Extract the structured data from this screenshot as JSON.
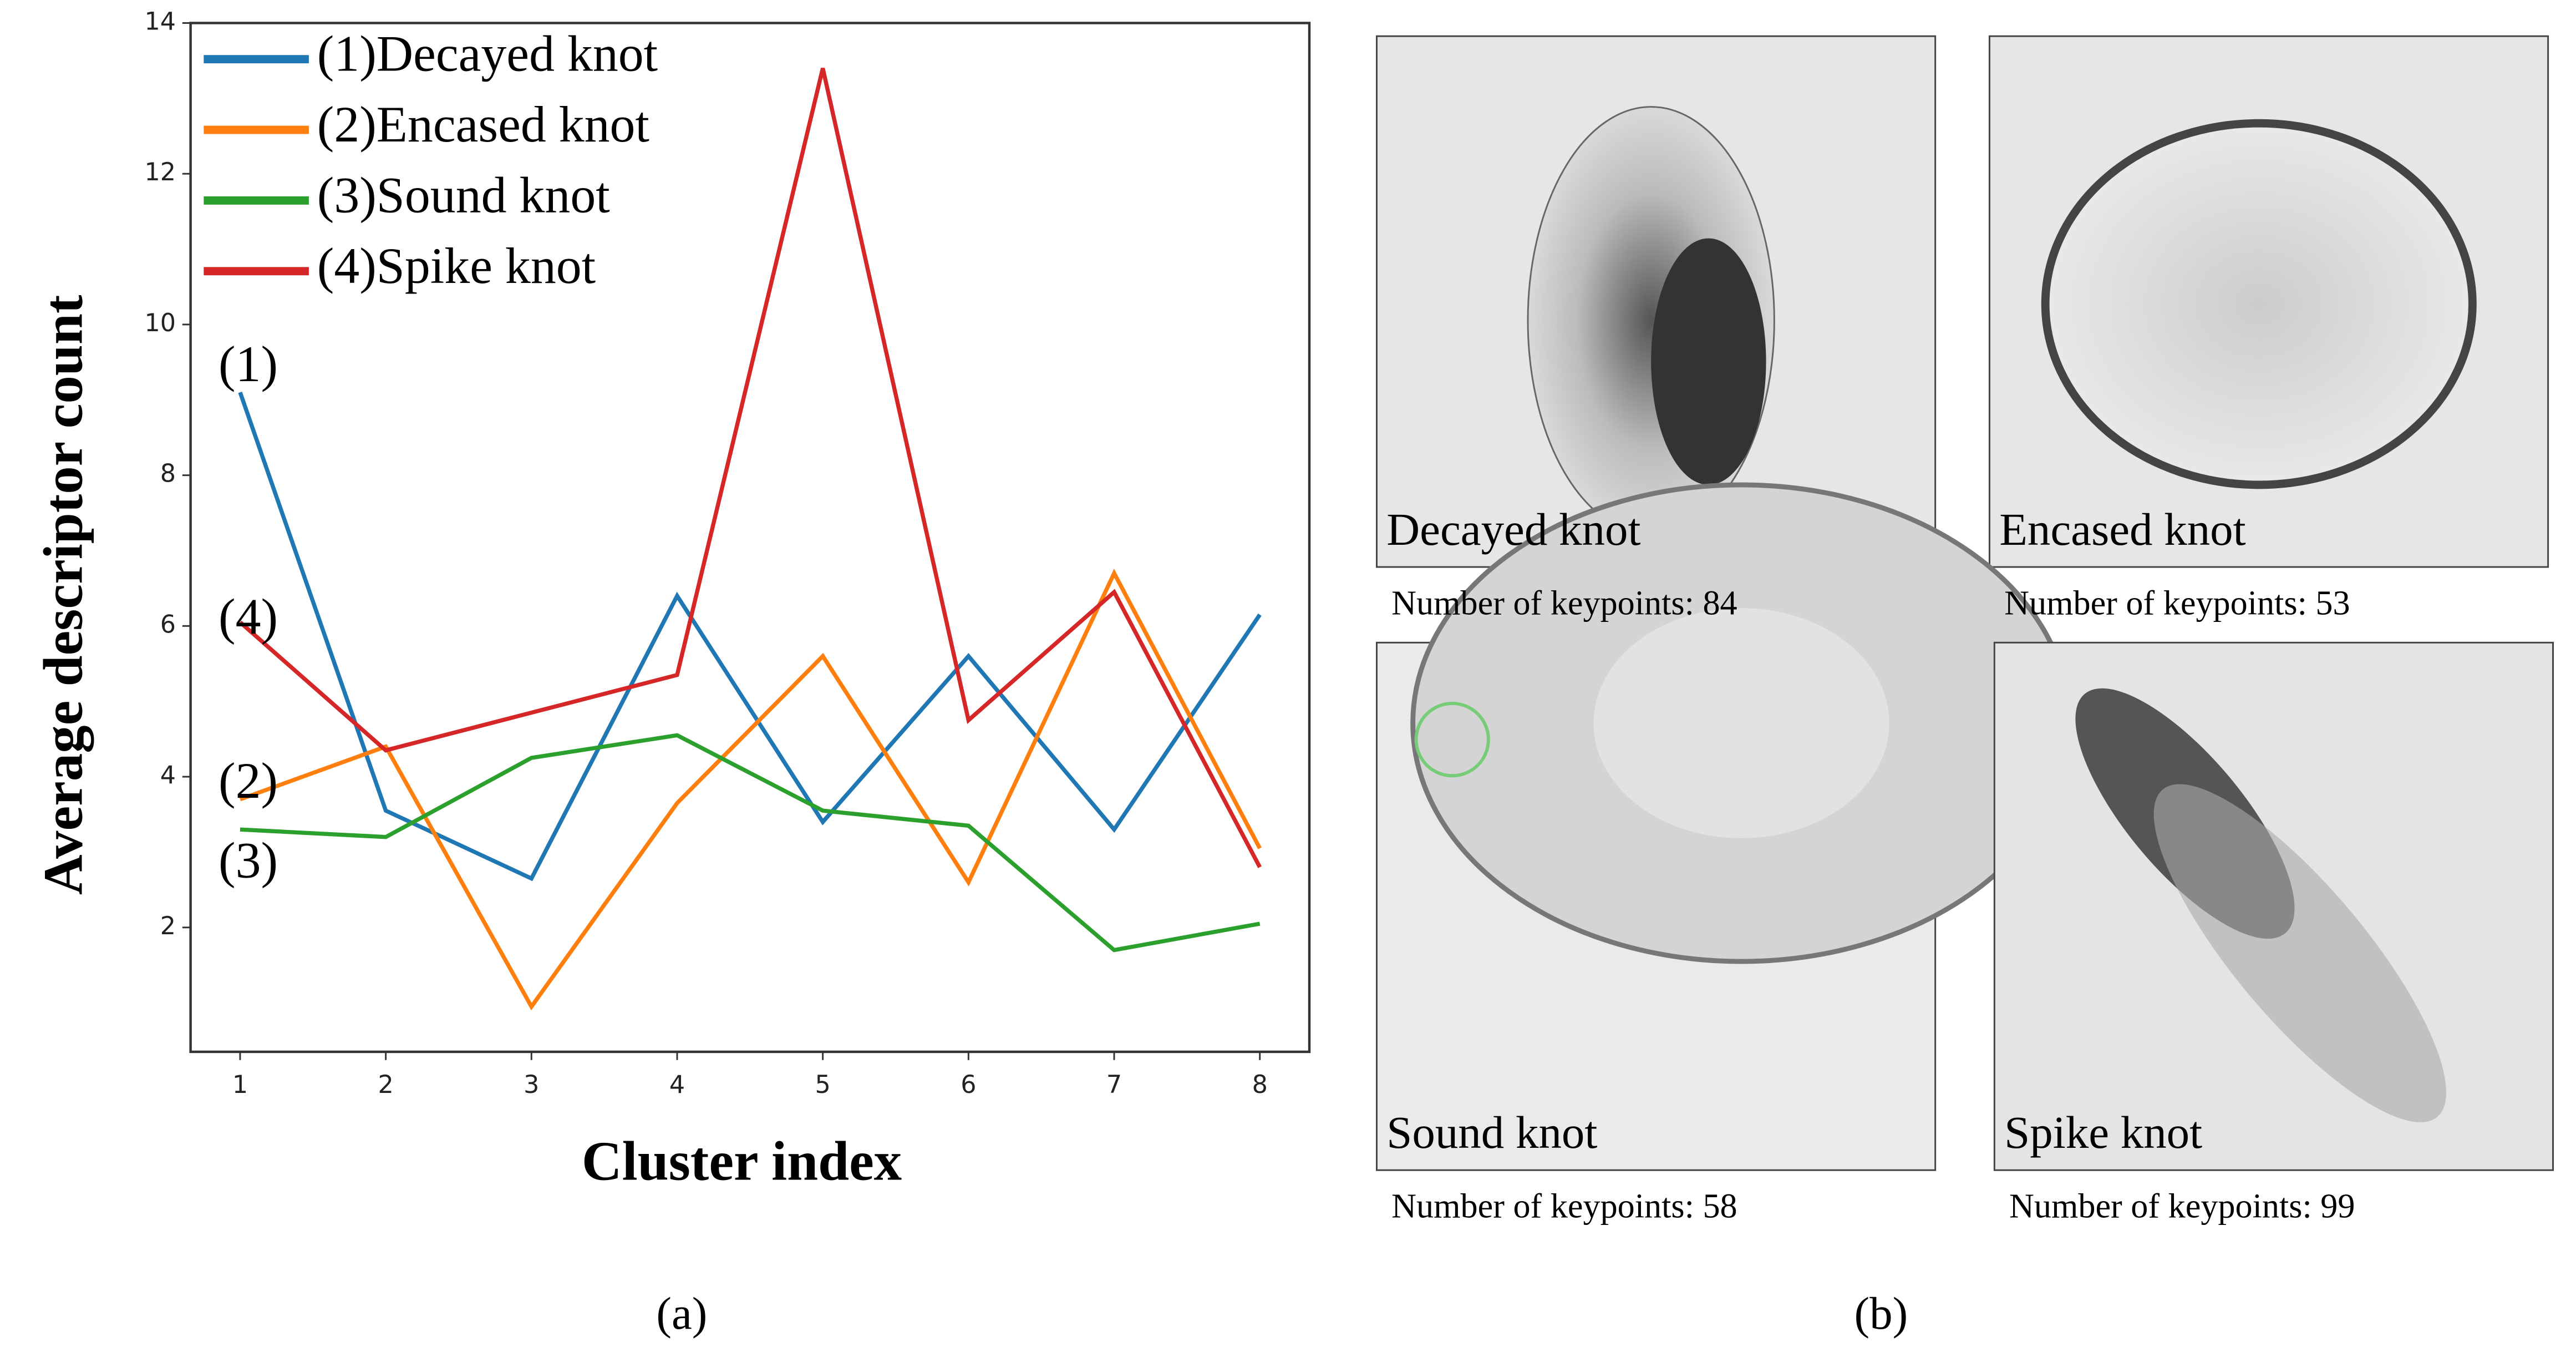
{
  "chart_data": {
    "type": "line",
    "x_label": "Cluster index",
    "y_label": "Average descriptor count",
    "x": [
      1,
      2,
      3,
      4,
      5,
      6,
      7,
      8
    ],
    "xlim": [
      0.66,
      8.34
    ],
    "xticks": [
      1,
      2,
      3,
      4,
      5,
      6,
      7,
      8
    ],
    "ylim": [
      0.35,
      14
    ],
    "yticks": [
      2,
      4,
      6,
      8,
      10,
      12,
      14
    ],
    "legend": "upper left",
    "series": [
      {
        "name": "(1)Decayed knot",
        "color": "#1f77b4",
        "values": [
          9.1,
          3.55,
          2.65,
          6.4,
          3.4,
          5.6,
          3.3,
          6.15
        ]
      },
      {
        "name": "(2)Encased knot",
        "color": "#ff7f0e",
        "values": [
          3.7,
          4.4,
          0.95,
          3.65,
          5.6,
          2.6,
          6.7,
          3.05
        ]
      },
      {
        "name": "(3)Sound knot",
        "color": "#2ca02c",
        "values": [
          3.3,
          3.2,
          4.25,
          4.55,
          3.55,
          3.35,
          1.7,
          2.05
        ]
      },
      {
        "name": "(4)Spike knot",
        "color": "#d62728",
        "values": [
          6.05,
          4.35,
          4.85,
          5.35,
          13.4,
          4.75,
          6.45,
          2.8
        ]
      }
    ],
    "annotations": [
      "(1)",
      "(2)",
      "(3)",
      "(4)"
    ],
    "caption": "(a)"
  },
  "panels": [
    {
      "label": "Decayed knot",
      "caption": "Number of keypoints: 84"
    },
    {
      "label": "Encased knot",
      "caption": "Number of keypoints: 53"
    },
    {
      "label": "Sound knot",
      "caption": "Number of keypoints: 58"
    },
    {
      "label": "Spike knot",
      "caption": "Number of keypoints: 99"
    }
  ],
  "panels_caption": "(b)"
}
